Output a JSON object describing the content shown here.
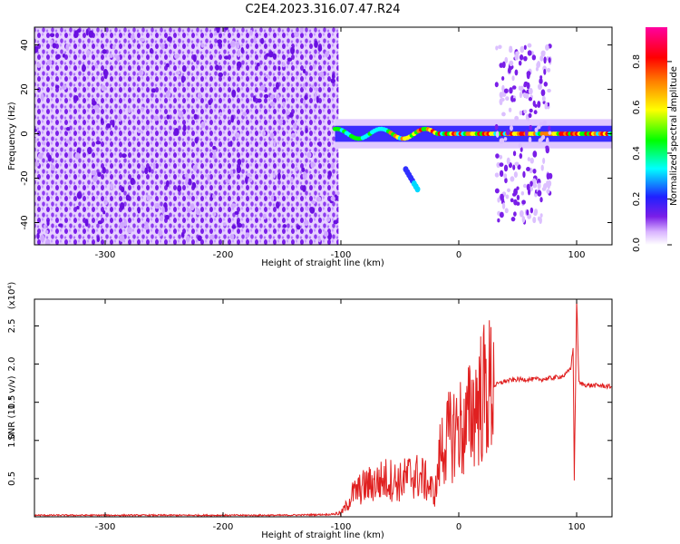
{
  "figure": {
    "title": "C2E4.2023.316.07.47.R24"
  },
  "colors": {
    "snr_line": "#e02020",
    "spectro_background_fill": "#7a1ee8",
    "frame": "#000000"
  },
  "chart_data": [
    {
      "type": "heatmap",
      "title": "C2E4.2023.316.07.47.R24",
      "xlabel": "Height of straight line (km)",
      "ylabel": "Frequency (Hz)",
      "xlim": [
        -360,
        130
      ],
      "ylim": [
        -50,
        48
      ],
      "x_ticks": [
        -300,
        -200,
        -100,
        0,
        100
      ],
      "y_ticks": [
        -40,
        -20,
        0,
        20,
        40
      ],
      "colorbar": {
        "label": "Normalized spectral amplitude",
        "range": [
          0.0,
          0.95
        ],
        "ticks": [
          "0.0",
          "0.2",
          "0.4",
          "0.6",
          "0.8"
        ],
        "colormap": "rainbow (white-purple-blue-cyan-green-yellow-red-magenta)"
      },
      "regions": [
        {
          "name": "broadband noise",
          "x_range": [
            -360,
            -102
          ],
          "freq_range": [
            -50,
            48
          ],
          "amplitude": 0.1
        },
        {
          "name": "signal track",
          "x_range": [
            -105,
            130
          ],
          "freq_center": 0,
          "freq_halfwidth": 3,
          "amplitude_peak": 0.9
        },
        {
          "name": "sidelobe",
          "x_range": [
            -45,
            -35
          ],
          "freq_range": [
            -25,
            -16
          ],
          "amplitude": 0.3
        },
        {
          "name": "noise band",
          "x_range": [
            32,
            78
          ],
          "freq_range": [
            -40,
            40
          ],
          "amplitude": 0.1
        }
      ]
    },
    {
      "type": "line",
      "xlabel": "Height of straight line (km)",
      "ylabel": "SNR (10 * v/v)",
      "y_multiplier": "(x10⁴)",
      "xlim": [
        -360,
        130
      ],
      "ylim": [
        0,
        2.85
      ],
      "x_ticks": [
        -300,
        -200,
        -100,
        0,
        100
      ],
      "y_ticks": [
        "0.5",
        "1.0",
        "1.5",
        "2.0",
        "2.5"
      ],
      "series": [
        {
          "x": [
            -360,
            -250,
            -150,
            -110,
            -100,
            -95,
            -90,
            -80,
            -70,
            -60,
            -50,
            -40,
            -30,
            -25,
            -20,
            -15,
            -10,
            -5,
            0,
            5,
            10,
            15,
            20,
            25,
            30,
            40,
            50,
            60,
            70,
            80,
            90,
            95,
            97,
            98,
            99,
            100,
            102,
            110,
            120,
            130
          ],
          "y": [
            0.02,
            0.02,
            0.02,
            0.03,
            0.05,
            0.15,
            0.3,
            0.4,
            0.45,
            0.5,
            0.45,
            0.55,
            0.5,
            0.4,
            0.3,
            0.9,
            1.0,
            1.1,
            1.2,
            1.1,
            1.35,
            1.5,
            1.6,
            1.65,
            1.72,
            1.78,
            1.8,
            1.8,
            1.8,
            1.82,
            1.85,
            1.95,
            2.2,
            0.5,
            1.6,
            2.85,
            1.75,
            1.72,
            1.72,
            1.7
          ]
        }
      ]
    }
  ]
}
